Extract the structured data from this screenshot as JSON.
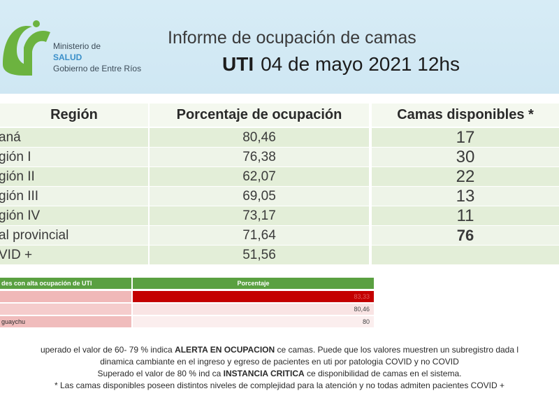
{
  "header": {
    "logo": {
      "line1": "Ministerio de",
      "line2": "SALUD",
      "line3": "Gobierno de Entre Ríos",
      "color": "#6cb33f"
    },
    "title": "Informe de ocupación de camas",
    "subtitle_prefix": "UTI",
    "subtitle_date": "04 de mayo 2021 12hs"
  },
  "main_table": {
    "headers": [
      "Región",
      "Porcentaje  de ocupación",
      "Camas disponibles *"
    ],
    "rows": [
      {
        "region": "aná",
        "porcentaje": "80,46",
        "camas": "17"
      },
      {
        "region": "gión I",
        "porcentaje": "76,38",
        "camas": "30"
      },
      {
        "region": "gión II",
        "porcentaje": "62,07",
        "camas": "22"
      },
      {
        "region": "gión III",
        "porcentaje": "69,05",
        "camas": "13"
      },
      {
        "region": "gión IV",
        "porcentaje": "73,17",
        "camas": "11"
      },
      {
        "region": "al provincial",
        "porcentaje": "71,64",
        "camas": "76"
      },
      {
        "region": "VID +",
        "porcentaje": "51,56",
        "camas": ""
      }
    ]
  },
  "alert_table": {
    "headers": [
      "des con alta ocupación de UTI",
      "Porcentaje"
    ],
    "rows": [
      {
        "name": "",
        "value": "83,33"
      },
      {
        "name": "",
        "value": "80,46"
      },
      {
        "name": "guaychu",
        "value": "80"
      }
    ]
  },
  "footnotes": {
    "line1_a": "uperado el valor de 60- 79 %  indica ",
    "line1_b": "ALERTA EN OCUPACION",
    "line1_c": " ce camas. Puede que los valores muestren un subregistro dada l",
    "line2": "dinamica cambiante en el ingreso y egreso de pacientes en uti por patologia COVID y no COVID",
    "line3_a": "Superado el valor de 80 % ind ca ",
    "line3_b": "INSTANCIA CRITICA",
    "line3_c": " ce disponibilidad de camas en el sistema.",
    "line4": "* Las camas disponibles poseen distintos niveles de complejidad para la atención y no todas admiten pacientes COVID +"
  }
}
